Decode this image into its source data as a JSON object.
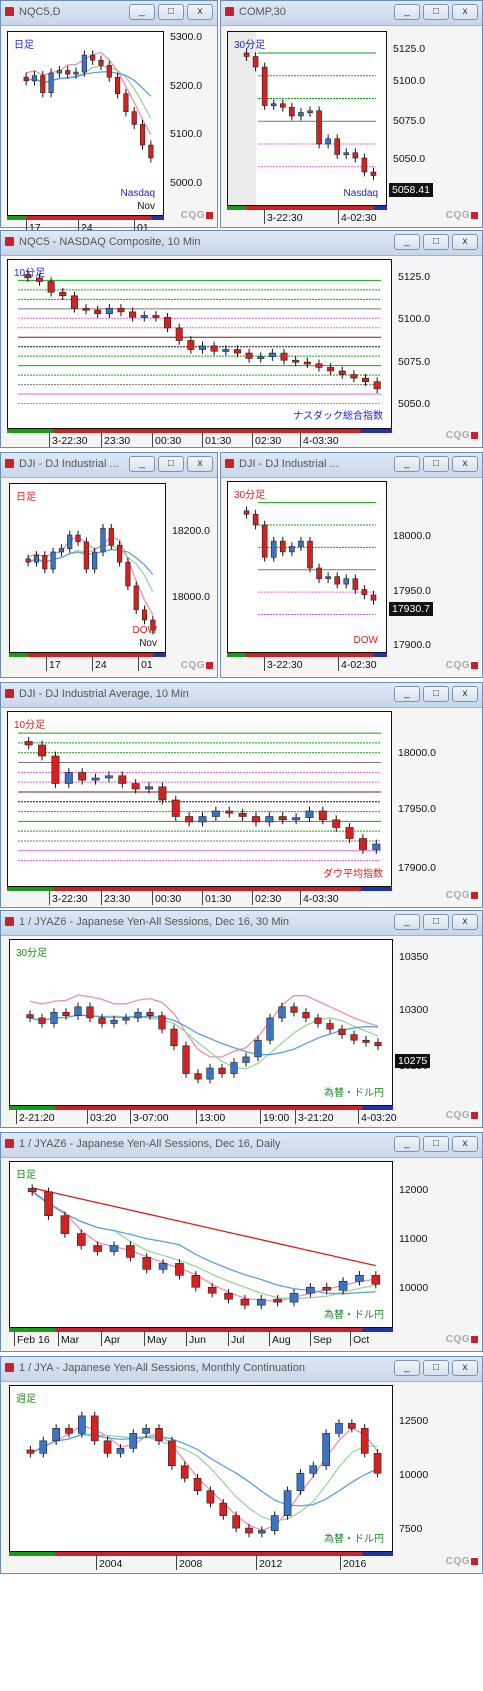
{
  "colors": {
    "accent": "#c9212a",
    "up": "#3a74c9",
    "down": "#d6221e",
    "maShort": "#f08cb0",
    "maMid": "#9fd39c",
    "maLong": "#5aa0e0",
    "maRed": "#d62020",
    "titleBg": "#d3e0f0"
  },
  "logo_text": "CQG",
  "windows": [
    {
      "id": "w1",
      "title": "NQC5,D",
      "buttons": [
        "_",
        "□",
        "x"
      ],
      "corner_label": "日足",
      "corner_color": "#2222cc",
      "instrument_label": "Nasdaq",
      "instrument_color": "#2222cc",
      "instrument_label2": "Nov",
      "y_ticks": [
        "5300.0",
        "5200.0",
        "5100.0",
        "5000.0"
      ],
      "x_ticks": [
        "17",
        "24",
        "01"
      ],
      "last_value": ""
    },
    {
      "id": "w2",
      "title": "COMP,30",
      "buttons": [
        "_",
        "□",
        "x"
      ],
      "corner_label": "30分足",
      "corner_color": "#2222cc",
      "instrument_label": "Nasdaq",
      "instrument_color": "#2222cc",
      "instrument_label2": "",
      "y_ticks": [
        "5125.0",
        "5100.0",
        "5075.0",
        "5050.0"
      ],
      "x_ticks": [
        "3-22:30",
        "4-02:30"
      ],
      "last_value": "5058.41"
    },
    {
      "id": "w3",
      "title": "NQC5 - NASDAQ Composite, 10 Min",
      "buttons": [
        "_",
        "□",
        "x"
      ],
      "corner_label": "10分足",
      "corner_color": "#2222cc",
      "instrument_label": "ナスダック総合指数",
      "instrument_color": "#2222cc",
      "instrument_label2": "",
      "y_ticks": [
        "5125.0",
        "5100.0",
        "5075.0",
        "5050.0"
      ],
      "x_ticks": [
        "3-22:30",
        "23:30",
        "00:30",
        "01:30",
        "02:30",
        "4-03:30"
      ],
      "last_value": ""
    },
    {
      "id": "w4",
      "title": "DJI - DJ Industrial ...",
      "buttons": [
        "_",
        "□",
        "x"
      ],
      "corner_label": "日足",
      "corner_color": "#d6221e",
      "instrument_label": "DOW",
      "instrument_color": "#d6221e",
      "instrument_label2": "Nov",
      "y_ticks": [
        "18200.0",
        "18000.0"
      ],
      "x_ticks": [
        "17",
        "24",
        "01"
      ],
      "last_value": ""
    },
    {
      "id": "w5",
      "title": "DJI - DJ Industrial ...",
      "buttons": [
        "_",
        "□",
        "x"
      ],
      "corner_label": "30分足",
      "corner_color": "#d6221e",
      "instrument_label": "DOW",
      "instrument_color": "#d6221e",
      "instrument_label2": "",
      "y_ticks": [
        "18000.0",
        "17950.0",
        "17900.0"
      ],
      "x_ticks": [
        "3-22:30",
        "4-02:30"
      ],
      "last_value": "17930.7"
    },
    {
      "id": "w6",
      "title": "DJI - DJ Industrial Average, 10 Min",
      "buttons": [
        "_",
        "□",
        "x"
      ],
      "corner_label": "10分足",
      "corner_color": "#d6221e",
      "instrument_label": "ダウ平均指数",
      "instrument_color": "#d6221e",
      "instrument_label2": "",
      "y_ticks": [
        "18000.0",
        "17950.0",
        "17900.0"
      ],
      "x_ticks": [
        "3-22:30",
        "23:30",
        "00:30",
        "01:30",
        "02:30",
        "4-03:30"
      ],
      "last_value": ""
    },
    {
      "id": "w7",
      "title": "1 / JYAZ6 - Japanese Yen-All Sessions, Dec 16, 30 Min",
      "buttons": [
        "_",
        "□",
        "x"
      ],
      "corner_label": "30分足",
      "corner_color": "#1a8a1a",
      "instrument_label": "為替・ドル円",
      "instrument_color": "#1a8a1a",
      "instrument_label2": "",
      "y_ticks": [
        "10350",
        "10300",
        "10250"
      ],
      "x_ticks": [
        "2-21:20",
        "03:20",
        "3-07:00",
        "13:00",
        "19:00",
        "3-21:20",
        "4-03:20"
      ],
      "last_value": "10275"
    },
    {
      "id": "w8",
      "title": "1 / JYAZ6 - Japanese Yen-All Sessions, Dec 16, Daily",
      "buttons": [
        "_",
        "□",
        "x"
      ],
      "corner_label": "日足",
      "corner_color": "#1a8a1a",
      "instrument_label": "為替・ドル円",
      "instrument_color": "#1a8a1a",
      "instrument_label2": "",
      "y_ticks": [
        "12000",
        "11000",
        "10000"
      ],
      "x_ticks": [
        "Feb 16",
        "Mar",
        "Apr",
        "May",
        "Jun",
        "Jul",
        "Aug",
        "Sep",
        "Oct"
      ],
      "last_value": ""
    },
    {
      "id": "w9",
      "title": "1 / JYA - Japanese Yen-All Sessions, Monthly Continuation",
      "buttons": [
        "_",
        "□",
        "x"
      ],
      "corner_label": "週足",
      "corner_color": "#1a8a1a",
      "instrument_label": "為替・ドル円",
      "instrument_color": "#1a8a1a",
      "instrument_label2": "",
      "y_ticks": [
        "12500",
        "10000",
        "7500"
      ],
      "x_ticks": [
        "2004",
        "2008",
        "2012",
        "2016"
      ],
      "last_value": ""
    }
  ],
  "chart_data": [
    {
      "type": "candlestick",
      "window": "w1",
      "title": "NQC5,D",
      "series": [
        {
          "values": [
            5255,
            5265,
            5232,
            5270,
            5275,
            5268,
            5272,
            5305,
            5295,
            5285,
            5262,
            5230,
            5195,
            5170,
            5130,
            5105
          ]
        }
      ],
      "ylim": [
        4990,
        5350
      ]
    },
    {
      "type": "candlestick",
      "window": "w2",
      "title": "COMP,30",
      "series": [
        {
          "values": [
            5126,
            5120,
            5098,
            5099,
            5097,
            5092,
            5094,
            5095,
            5076,
            5079,
            5070,
            5071,
            5068,
            5060,
            5058
          ]
        }
      ],
      "ylim": [
        5040,
        5140
      ]
    },
    {
      "type": "candlestick",
      "window": "w3",
      "title": "NASDAQ Composite, 10 Min",
      "series": [
        {
          "values": [
            5120,
            5118,
            5112,
            5110,
            5103,
            5102,
            5100,
            5103,
            5101,
            5098,
            5099,
            5098,
            5092,
            5085,
            5080,
            5082,
            5079,
            5080,
            5078,
            5075,
            5076,
            5078,
            5074,
            5073,
            5072,
            5070,
            5068,
            5066,
            5064,
            5062,
            5058
          ]
        }
      ],
      "ylim": [
        5035,
        5130
      ]
    },
    {
      "type": "candlestick",
      "window": "w4",
      "title": "DJI Daily",
      "series": [
        {
          "values": [
            18120,
            18140,
            18100,
            18150,
            18160,
            18200,
            18180,
            18100,
            18150,
            18220,
            18170,
            18120,
            18050,
            17980,
            17950,
            17920
          ]
        }
      ],
      "ylim": [
        17850,
        18350
      ]
    },
    {
      "type": "candlestick",
      "window": "w5",
      "title": "DJI 30 Min",
      "series": [
        {
          "values": [
            18010,
            18000,
            17970,
            17985,
            17975,
            17980,
            17985,
            17960,
            17950,
            17952,
            17945,
            17950,
            17940,
            17935,
            17930
          ]
        }
      ],
      "ylim": [
        17880,
        18040
      ]
    },
    {
      "type": "candlestick",
      "window": "w6",
      "title": "DJI 10 Min",
      "series": [
        {
          "values": [
            18010,
            18000,
            17975,
            17985,
            17978,
            17980,
            17982,
            17975,
            17970,
            17972,
            17960,
            17945,
            17940,
            17945,
            17950,
            17948,
            17945,
            17940,
            17945,
            17942,
            17944,
            17950,
            17942,
            17935,
            17925,
            17915,
            17920
          ]
        }
      ],
      "ylim": [
        17880,
        18040
      ]
    },
    {
      "type": "candlestick",
      "window": "w7",
      "title": "JYAZ6 30 Min",
      "series": [
        {
          "values": [
            10300,
            10295,
            10305,
            10302,
            10310,
            10300,
            10295,
            10298,
            10300,
            10305,
            10302,
            10290,
            10275,
            10250,
            10245,
            10255,
            10250,
            10260,
            10265,
            10280,
            10300,
            10310,
            10305,
            10300,
            10295,
            10290,
            10285,
            10280,
            10278,
            10275
          ]
        }
      ],
      "ylim": [
        10220,
        10370
      ]
    },
    {
      "type": "candlestick",
      "window": "w8",
      "title": "JYAZ6 Daily",
      "series": [
        {
          "values": [
            11900,
            11500,
            11200,
            11000,
            10900,
            11000,
            10800,
            10600,
            10700,
            10500,
            10300,
            10200,
            10100,
            10000,
            10100,
            10050,
            10200,
            10300,
            10250,
            10400,
            10500,
            10350
          ]
        }
      ],
      "ylim": [
        9600,
        12400
      ]
    },
    {
      "type": "candlestick",
      "window": "w9",
      "title": "JYA Monthly",
      "series": [
        {
          "values": [
            11000,
            11500,
            12000,
            11800,
            12500,
            11500,
            11000,
            11200,
            11800,
            12000,
            11500,
            10500,
            10000,
            9500,
            9000,
            8500,
            8000,
            7800,
            7900,
            8500,
            9500,
            10200,
            10500,
            11800,
            12200,
            12000,
            11000,
            10200
          ]
        }
      ],
      "ylim": [
        7000,
        13700
      ]
    }
  ]
}
